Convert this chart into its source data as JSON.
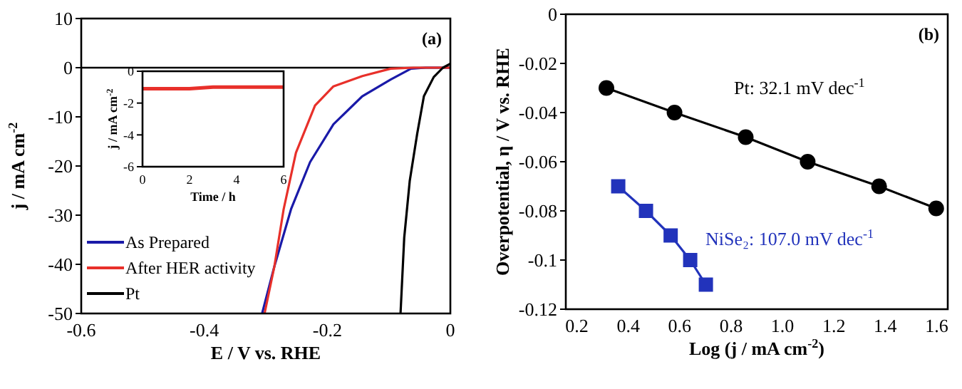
{
  "chart_data": [
    {
      "type": "line",
      "xlabel": "E / V vs. RHE",
      "ylabel": "j / mA cm$^{-2}$",
      "xlim": [
        -0.6,
        0
      ],
      "xticks": [
        -0.6,
        -0.4,
        -0.2,
        0
      ],
      "ylim": [
        -50,
        10
      ],
      "yticks": [
        -50,
        -40,
        -30,
        -20,
        -10,
        0,
        10
      ],
      "legend": "bottom left",
      "grid": false,
      "annotations": [
        "(a)"
      ],
      "ref_lines": [
        {
          "axis": "y",
          "value": 0,
          "color": "#000000"
        }
      ],
      "series": [
        {
          "name": "As Prepared",
          "color": "#1a1aa8",
          "x": [
            -0.306,
            -0.286,
            -0.259,
            -0.228,
            -0.19,
            -0.143,
            -0.097,
            -0.064,
            -0.04,
            0
          ],
          "values": [
            -50,
            -40.4,
            -28.8,
            -19.2,
            -11.5,
            -5.8,
            -2.4,
            -0.2,
            0,
            0
          ]
        },
        {
          "name": "After HER activity",
          "color": "#e8302a",
          "x": [
            -0.302,
            -0.286,
            -0.271,
            -0.251,
            -0.22,
            -0.19,
            -0.143,
            -0.097,
            -0.06,
            0
          ],
          "values": [
            -50,
            -40.4,
            -28.8,
            -17.3,
            -7.7,
            -3.8,
            -1.7,
            -0.2,
            0,
            0
          ]
        },
        {
          "name": "Pt",
          "color": "#000000",
          "x": [
            -0.081,
            -0.075,
            -0.066,
            -0.054,
            -0.043,
            -0.027,
            -0.012,
            0
          ],
          "values": [
            -50,
            -34.6,
            -23,
            -13.5,
            -5.8,
            -1.9,
            0,
            0.8
          ]
        }
      ]
    },
    {
      "type": "line",
      "xlabel": "Time / h",
      "ylabel": "j / mA cm$^{-2}$",
      "xlim": [
        0,
        6
      ],
      "xticks": [
        0,
        2,
        4,
        6
      ],
      "ylim": [
        -6,
        0
      ],
      "yticks": [
        -6,
        -4,
        -2,
        0
      ],
      "grid": false,
      "series": [
        {
          "color": "#e8302a",
          "x": [
            0,
            0.5,
            1,
            2,
            3,
            4,
            5,
            6
          ],
          "values": [
            -1.1,
            -1.1,
            -1.1,
            -1.1,
            -1,
            -1,
            -1,
            -1
          ]
        }
      ]
    },
    {
      "type": "line",
      "xlabel": "Log (j / mA cm$^{-2}$)",
      "ylabel": "Overpotential, η / V vs. RHE",
      "xlim": [
        0.157,
        1.643
      ],
      "xticks": [
        0.2,
        0.4,
        0.6,
        0.8,
        {
          "value": 1,
          "label": "1.0"
        },
        1.2,
        1.4,
        1.6
      ],
      "ylim": [
        -0.12,
        0
      ],
      "yticks": [
        -0.12,
        -0.1,
        -0.08,
        -0.06,
        -0.04,
        -0.02,
        0
      ],
      "grid": false,
      "annotations": [
        "(b)",
        "Pt: 32.1 mV dec$^{-1}$",
        "NiSe₂: 107.0 mV dec$^{-1}$"
      ],
      "series": [
        {
          "color": "#000000",
          "marker": "circle",
          "x": [
            0.315,
            0.58,
            0.857,
            1.098,
            1.376,
            1.598
          ],
          "values": [
            -0.03,
            -0.04,
            -0.05,
            -0.06,
            -0.07,
            -0.079
          ]
        },
        {
          "color": "#2233bb",
          "marker": "square",
          "x": [
            0.361,
            0.469,
            0.565,
            0.641,
            0.702
          ],
          "values": [
            -0.07,
            -0.08,
            -0.09,
            -0.1,
            -0.11
          ]
        }
      ]
    }
  ]
}
